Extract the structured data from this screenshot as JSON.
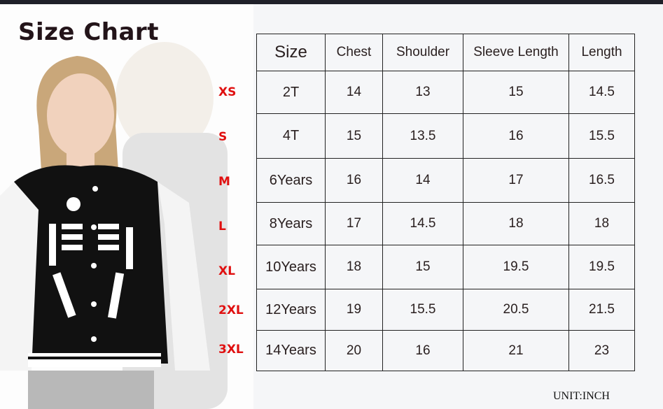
{
  "title": "Size Chart",
  "size_labels": [
    "XS",
    "S",
    "M",
    "L",
    "XL",
    "2XL",
    "3XL"
  ],
  "table": {
    "headers": [
      "Size",
      "Chest",
      "Shoulder",
      "Sleeve Length",
      "Length"
    ],
    "rows": [
      [
        "2T",
        "14",
        "13",
        "15",
        "14.5"
      ],
      [
        "4T",
        "15",
        "13.5",
        "16",
        "15.5"
      ],
      [
        "6Years",
        "16",
        "14",
        "17",
        "16.5"
      ],
      [
        "8Years",
        "17",
        "14.5",
        "18",
        "18"
      ],
      [
        "10Years",
        "18",
        "15",
        "19.5",
        "19.5"
      ],
      [
        "12Years",
        "19",
        "15.5",
        "20.5",
        "21.5"
      ],
      [
        "14Years",
        "20",
        "16",
        "21",
        "23"
      ]
    ]
  },
  "unit": "UNIT:INCH",
  "colors": {
    "size_label": "#e01010",
    "title": "#231419",
    "jacket": "#111111"
  }
}
